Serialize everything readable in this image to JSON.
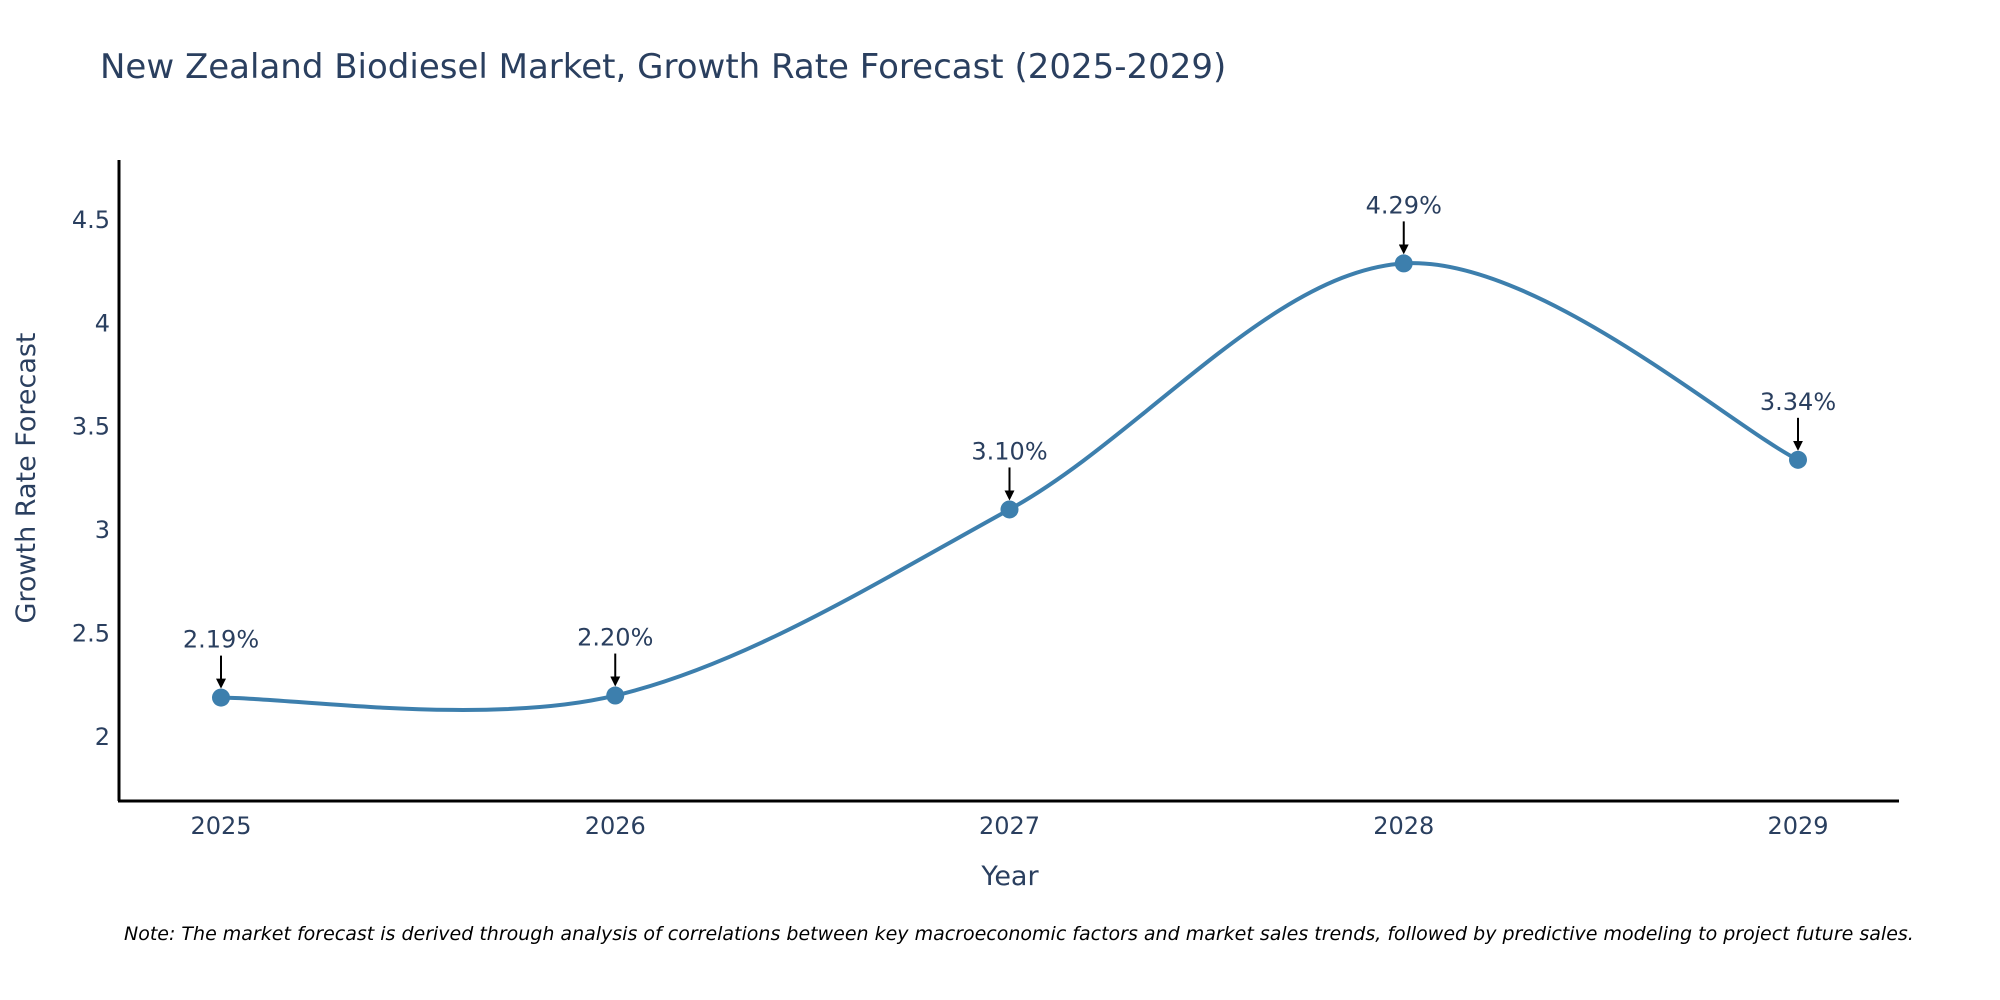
{
  "chart_data": {
    "type": "line",
    "title": "New Zealand Biodiesel Market, Growth Rate Forecast (2025-2029)",
    "xlabel": "Year",
    "ylabel": "Growth Rate Forecast",
    "categories": [
      "2025",
      "2026",
      "2027",
      "2028",
      "2029"
    ],
    "values": [
      2.19,
      2.2,
      3.1,
      4.29,
      3.34
    ],
    "data_labels": [
      "2.19%",
      "2.20%",
      "3.10%",
      "4.29%",
      "3.34%"
    ],
    "yticks": [
      2,
      2.5,
      3,
      3.5,
      4,
      4.5
    ],
    "ytick_labels": [
      "2",
      "2.5",
      "3",
      "3.5",
      "4",
      "4.5"
    ],
    "ylim": [
      1.69,
      4.79
    ],
    "grid": false,
    "line_shape": "spline",
    "series_color": "#3d7fad",
    "text_color": "#2a3f5f",
    "note": "Note: The market forecast is derived through analysis of correlations between key macroeconomic factors and market sales trends, followed by predictive modeling to project future sales."
  }
}
